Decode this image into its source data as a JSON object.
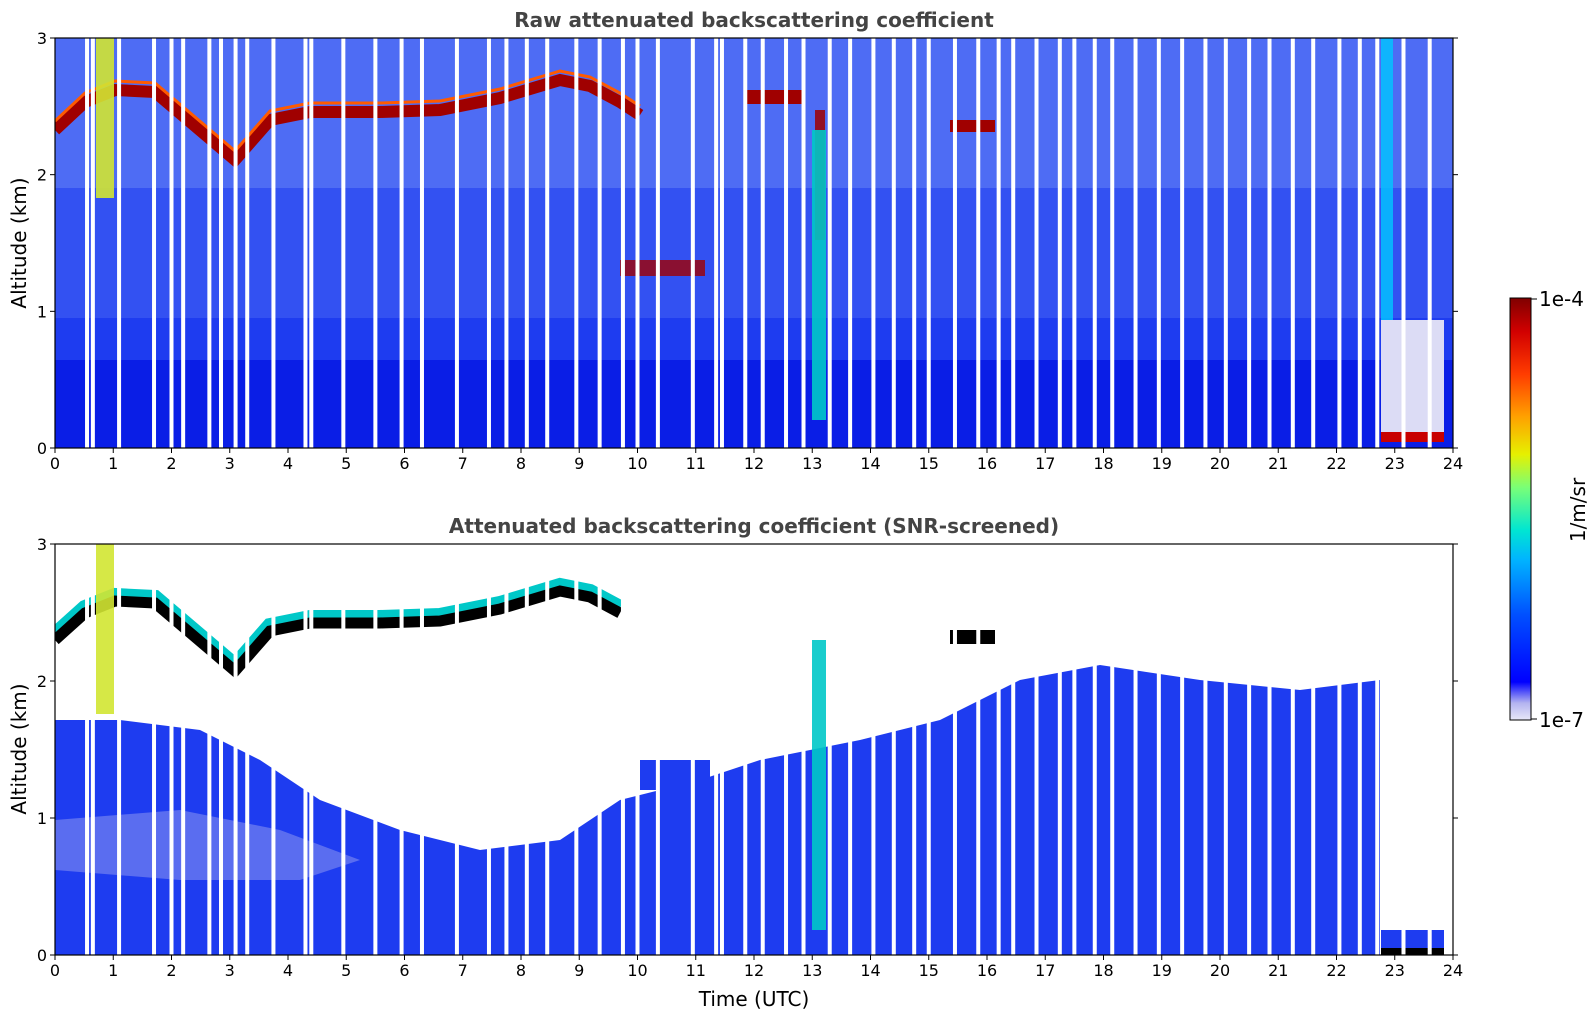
{
  "chart_data": [
    {
      "type": "heatmap",
      "title": "Raw attenuated backscattering coefficient",
      "xlabel": "",
      "ylabel": "Altitude (km)",
      "xlim": [
        0,
        24
      ],
      "ylim": [
        0,
        3
      ],
      "x_ticks": [
        "0",
        "1",
        "2",
        "3",
        "4",
        "5",
        "6",
        "7",
        "8",
        "9",
        "10",
        "11",
        "12",
        "13",
        "14",
        "15",
        "16",
        "17",
        "18",
        "19",
        "20",
        "21",
        "22",
        "23",
        "24"
      ],
      "y_ticks": [
        "0",
        "1",
        "2",
        "3"
      ],
      "cloud_layer_km": [
        [
          0.0,
          2.35
        ],
        [
          0.3,
          2.55
        ],
        [
          0.6,
          2.65
        ],
        [
          1.0,
          2.7
        ],
        [
          3.0,
          2.2
        ],
        [
          3.5,
          2.4
        ],
        [
          4.0,
          2.45
        ],
        [
          5.0,
          2.4
        ],
        [
          6.0,
          2.45
        ],
        [
          7.0,
          2.55
        ],
        [
          8.0,
          2.7
        ],
        [
          8.6,
          2.62
        ],
        [
          9.0,
          2.55
        ]
      ],
      "data_gaps_utc": [
        0.55,
        0.65,
        1.1,
        1.7,
        2.0,
        2.2,
        2.65,
        2.85,
        3.1,
        3.3,
        3.75,
        4.3,
        4.4,
        4.95,
        5.5,
        5.95,
        6.3,
        6.9,
        7.45,
        7.75,
        8.1,
        8.45,
        8.95,
        9.35,
        9.75,
        10.0,
        10.35,
        10.95,
        11.35,
        11.45,
        11.85,
        12.15,
        12.55,
        12.85,
        13.3,
        13.65,
        14.05,
        14.4,
        14.75,
        15.0,
        15.45,
        15.85,
        16.2,
        16.45,
        16.85,
        17.25,
        17.5,
        17.85,
        18.15,
        18.55,
        18.95,
        19.35,
        19.75,
        20.1,
        20.5,
        20.85,
        21.25,
        21.6,
        22.05,
        22.4,
        22.7,
        23.15,
        23.6
      ]
    },
    {
      "type": "heatmap",
      "title": "Attenuated backscattering coefficient (SNR-screened)",
      "xlabel": "Time (UTC)",
      "ylabel": "Altitude (km)",
      "xlim": [
        0,
        24
      ],
      "ylim": [
        0,
        3
      ],
      "x_ticks": [
        "0",
        "1",
        "2",
        "3",
        "4",
        "5",
        "6",
        "7",
        "8",
        "9",
        "10",
        "11",
        "12",
        "13",
        "14",
        "15",
        "16",
        "17",
        "18",
        "19",
        "20",
        "21",
        "22",
        "23",
        "24"
      ],
      "y_ticks": [
        "0",
        "1",
        "2",
        "3"
      ]
    }
  ],
  "colorbar": {
    "label": "1/m/sr",
    "min_label": "1e-7",
    "max_label": "1e-4",
    "colormap": "jet",
    "scale": "log"
  },
  "colors": {
    "noise_blue": "#1428e6",
    "cloud_red": "#a00000",
    "gap_white": "#ffffff",
    "low_lavender": "#dcdcf5"
  }
}
